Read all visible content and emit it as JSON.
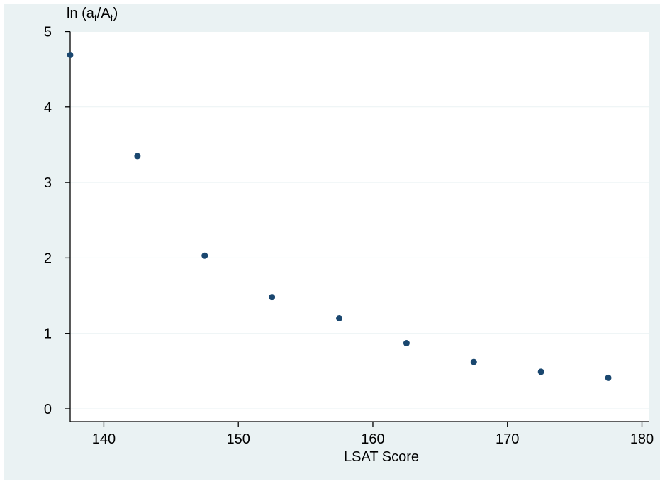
{
  "chart_data": {
    "type": "scatter",
    "title": "",
    "xlabel": "LSAT Score",
    "ylabel": "ln (at/At)",
    "ylabel_parts": {
      "prefix": "ln (a",
      "sub1": "t",
      "mid": "/A",
      "sub2": "t",
      "suffix": ")"
    },
    "xlim": [
      137.5,
      180.5
    ],
    "ylim": [
      0,
      5
    ],
    "x_ticks": [
      140,
      150,
      160,
      170,
      180
    ],
    "y_ticks": [
      0,
      1,
      2,
      3,
      4,
      5
    ],
    "grid": "horizontal",
    "legend": "none",
    "colors": {
      "outer_background": "#eaf2f3",
      "plot_background": "#ffffff",
      "grid": "#eaf2f3",
      "marker": "#1a476f",
      "axis": "#000000"
    },
    "series": [
      {
        "x": [
          137.5,
          142.5,
          147.5,
          152.5,
          157.5,
          162.5,
          167.5,
          172.5,
          177.5
        ],
        "y": [
          4.69,
          3.35,
          2.03,
          1.48,
          1.2,
          0.87,
          0.62,
          0.49,
          0.41
        ]
      }
    ]
  }
}
